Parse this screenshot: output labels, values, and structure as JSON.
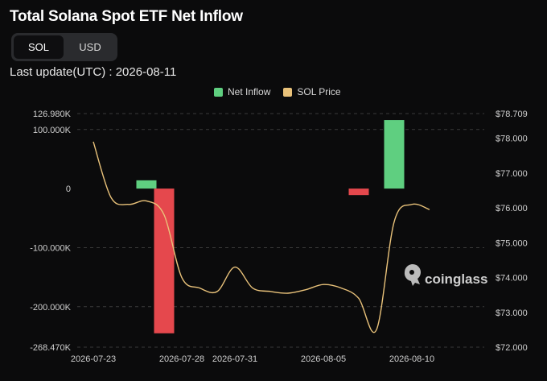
{
  "header": {
    "title": "Total Solana Spot ETF Net Inflow",
    "toggle": [
      {
        "label": "SOL",
        "active": true
      },
      {
        "label": "USD",
        "active": false
      }
    ],
    "last_update": "Last update(UTC) : 2026-08-11"
  },
  "watermark": {
    "text": "coinglass",
    "icon": "coinglass-logo-icon"
  },
  "colors": {
    "positive": "#5fcf80",
    "negative": "#e5484d",
    "price_line": "#e9c27a",
    "grid": "#3a3a3a",
    "background": "#0b0b0c"
  },
  "chart_data": {
    "type": "bar",
    "legend": [
      "Net Inflow",
      "SOL Price"
    ],
    "legend_position": "top",
    "x_ticks": [
      "2026-07-23",
      "2026-07-28",
      "2026-07-31",
      "2026-08-05",
      "2026-08-10"
    ],
    "left_axis": {
      "ticks": [
        "126.980K",
        "100.000K",
        "0",
        "-100.000K",
        "-200.000K",
        "-268.470K"
      ],
      "tick_values": [
        126980,
        100000,
        0,
        -100000,
        -200000,
        -268470
      ],
      "range": [
        -268470,
        126980
      ]
    },
    "right_axis": {
      "ticks": [
        "$78.709",
        "$78.000",
        "$77.000",
        "$76.000",
        "$75.000",
        "$74.000",
        "$73.000",
        "$72.000"
      ],
      "tick_values": [
        78.709,
        78,
        77,
        76,
        75,
        74,
        73,
        72
      ],
      "range": [
        72.0,
        78.709
      ]
    },
    "series": [
      {
        "name": "Net Inflow",
        "type": "bar",
        "points": [
          {
            "date": "2026-07-26",
            "value": 14000
          },
          {
            "date": "2026-07-27",
            "value": -245000
          },
          {
            "date": "2026-08-07",
            "value": -11000
          },
          {
            "date": "2026-08-09",
            "value": 116000
          }
        ]
      },
      {
        "name": "SOL Price",
        "type": "line",
        "points": [
          {
            "date": "2026-07-23",
            "value": 77.9
          },
          {
            "date": "2026-07-24",
            "value": 76.3
          },
          {
            "date": "2026-07-25",
            "value": 76.1
          },
          {
            "date": "2026-07-26",
            "value": 76.2
          },
          {
            "date": "2026-07-27",
            "value": 75.8
          },
          {
            "date": "2026-07-28",
            "value": 74.0
          },
          {
            "date": "2026-07-29",
            "value": 73.7
          },
          {
            "date": "2026-07-30",
            "value": 73.6
          },
          {
            "date": "2026-07-31",
            "value": 74.3
          },
          {
            "date": "2026-08-01",
            "value": 73.7
          },
          {
            "date": "2026-08-02",
            "value": 73.6
          },
          {
            "date": "2026-08-03",
            "value": 73.55
          },
          {
            "date": "2026-08-04",
            "value": 73.65
          },
          {
            "date": "2026-08-05",
            "value": 73.8
          },
          {
            "date": "2026-08-06",
            "value": 73.7
          },
          {
            "date": "2026-08-07",
            "value": 73.4
          },
          {
            "date": "2026-08-08",
            "value": 72.5
          },
          {
            "date": "2026-08-09",
            "value": 75.6
          },
          {
            "date": "2026-08-10",
            "value": 76.1
          },
          {
            "date": "2026-08-11",
            "value": 75.95
          }
        ]
      }
    ]
  }
}
